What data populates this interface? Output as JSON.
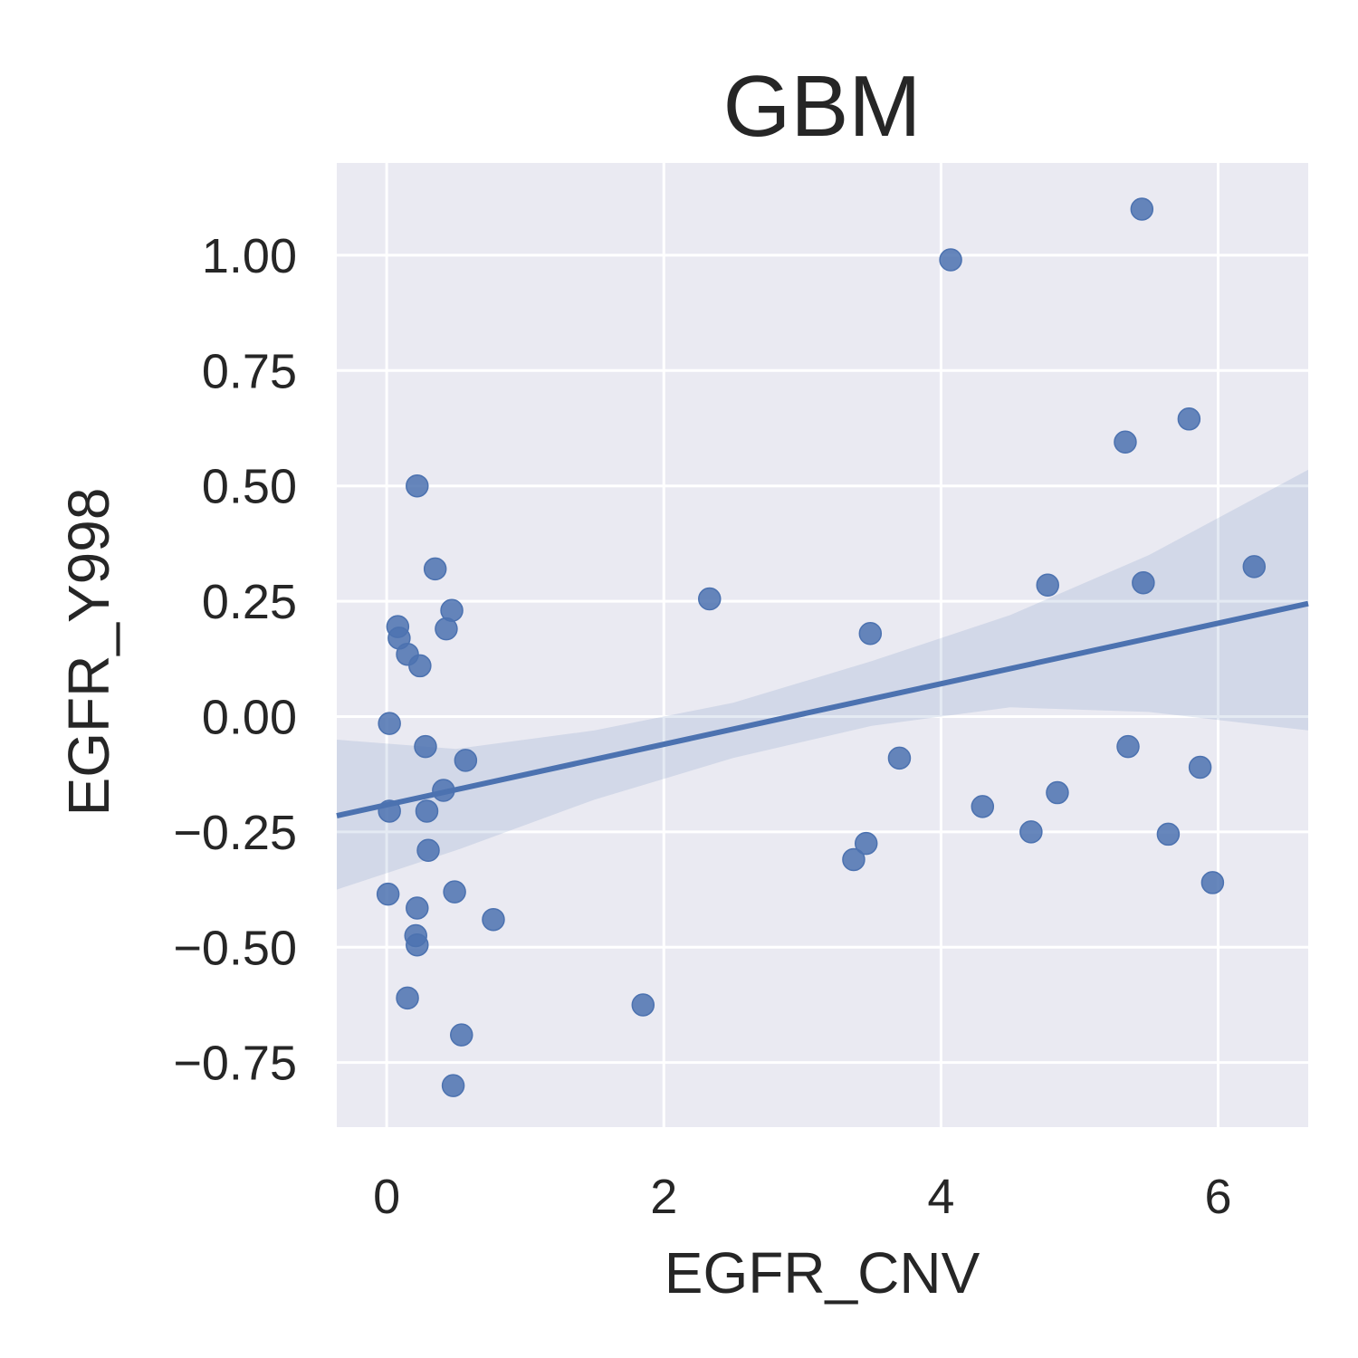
{
  "chart_data": {
    "type": "scatter",
    "title": "GBM",
    "xlabel": "EGFR_CNV",
    "ylabel": "EGFR_Y998",
    "xlim": [
      -0.36,
      6.65
    ],
    "ylim": [
      -0.89,
      1.2
    ],
    "xticks": [
      0,
      2,
      4,
      6
    ],
    "xtick_labels": [
      "0",
      "2",
      "4",
      "6"
    ],
    "yticks": [
      -0.75,
      -0.5,
      -0.25,
      0.0,
      0.25,
      0.5,
      0.75,
      1.0
    ],
    "ytick_labels": [
      "−0.75",
      "−0.50",
      "−0.25",
      "0.00",
      "0.25",
      "0.50",
      "0.75",
      "1.00"
    ],
    "grid": true,
    "background_color": "#eaeaf2",
    "point_color": "#4c72b0",
    "points": [
      {
        "x": 0.22,
        "y": 0.5
      },
      {
        "x": 0.35,
        "y": 0.32
      },
      {
        "x": 0.47,
        "y": 0.23
      },
      {
        "x": 0.43,
        "y": 0.19
      },
      {
        "x": 0.08,
        "y": 0.195
      },
      {
        "x": 0.09,
        "y": 0.17
      },
      {
        "x": 0.15,
        "y": 0.135
      },
      {
        "x": 0.24,
        "y": 0.11
      },
      {
        "x": 0.02,
        "y": -0.015
      },
      {
        "x": 0.28,
        "y": -0.065
      },
      {
        "x": 0.57,
        "y": -0.095
      },
      {
        "x": 0.41,
        "y": -0.16
      },
      {
        "x": 0.02,
        "y": -0.205
      },
      {
        "x": 0.29,
        "y": -0.205
      },
      {
        "x": 0.3,
        "y": -0.29
      },
      {
        "x": 0.01,
        "y": -0.385
      },
      {
        "x": 0.49,
        "y": -0.38
      },
      {
        "x": 0.22,
        "y": -0.415
      },
      {
        "x": 0.77,
        "y": -0.44
      },
      {
        "x": 0.21,
        "y": -0.475
      },
      {
        "x": 0.22,
        "y": -0.495
      },
      {
        "x": 0.15,
        "y": -0.61
      },
      {
        "x": 1.85,
        "y": -0.625
      },
      {
        "x": 0.54,
        "y": -0.69
      },
      {
        "x": 0.48,
        "y": -0.8
      },
      {
        "x": 2.33,
        "y": 0.255
      },
      {
        "x": 3.49,
        "y": 0.18
      },
      {
        "x": 3.7,
        "y": -0.09
      },
      {
        "x": 3.37,
        "y": -0.31
      },
      {
        "x": 3.46,
        "y": -0.275
      },
      {
        "x": 4.07,
        "y": 0.99
      },
      {
        "x": 4.3,
        "y": -0.195
      },
      {
        "x": 4.65,
        "y": -0.25
      },
      {
        "x": 4.77,
        "y": 0.285
      },
      {
        "x": 4.84,
        "y": -0.165
      },
      {
        "x": 5.33,
        "y": 0.595
      },
      {
        "x": 5.45,
        "y": 1.1
      },
      {
        "x": 5.46,
        "y": 0.29
      },
      {
        "x": 5.35,
        "y": -0.065
      },
      {
        "x": 5.64,
        "y": -0.255
      },
      {
        "x": 5.79,
        "y": 0.645
      },
      {
        "x": 5.87,
        "y": -0.11
      },
      {
        "x": 5.96,
        "y": -0.36
      },
      {
        "x": 6.26,
        "y": 0.325
      }
    ],
    "regression": {
      "color": "#4c72b0",
      "line": [
        {
          "x": -0.36,
          "y": -0.215
        },
        {
          "x": 6.65,
          "y": 0.245
        }
      ],
      "ci_band": [
        {
          "x": -0.36,
          "lo": -0.375,
          "hi": -0.05
        },
        {
          "x": 0.5,
          "lo": -0.29,
          "hi": -0.07
        },
        {
          "x": 1.5,
          "lo": -0.18,
          "hi": -0.03
        },
        {
          "x": 2.5,
          "lo": -0.09,
          "hi": 0.03
        },
        {
          "x": 3.5,
          "lo": -0.02,
          "hi": 0.12
        },
        {
          "x": 4.5,
          "lo": 0.02,
          "hi": 0.22
        },
        {
          "x": 5.5,
          "lo": 0.01,
          "hi": 0.35
        },
        {
          "x": 6.65,
          "lo": -0.03,
          "hi": 0.535
        }
      ]
    }
  }
}
